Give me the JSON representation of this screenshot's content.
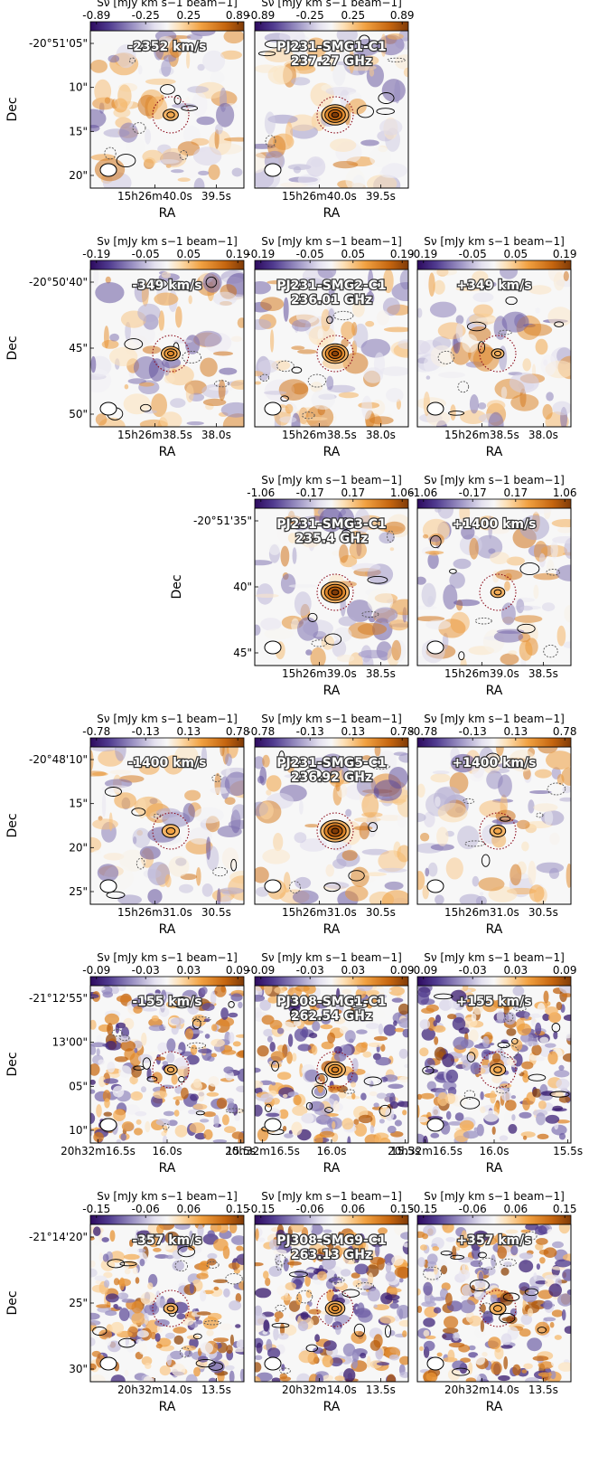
{
  "axis_labels": {
    "x": "RA",
    "y": "Dec"
  },
  "colors": {
    "negative": "#2d0a5e",
    "zero": "#f7f7f7",
    "positive": "#7f3b08",
    "circle": "#8b0a1a"
  },
  "chart_data": {
    "type": "heatmap",
    "colorscale": "PuOr_r",
    "contours": "solid black = positive levels, dashed grey = negative levels",
    "rows": [
      {
        "label": "PJ231-SMG1-C1",
        "colorbar": {
          "title": "Sν [mJy km s−1 beam−1]",
          "ticks": [
            "-0.89",
            "-0.25",
            "0.25",
            "0.89"
          ],
          "range": [
            -0.89,
            0.89
          ]
        },
        "y_ticks": [
          "-20°51'05\"",
          "10\"",
          "15\"",
          "20\""
        ],
        "x_ticks": [
          "15h26m40.0s",
          "39.5s"
        ],
        "panels": [
          {
            "slot": 0,
            "title": "-2352 km/s",
            "subtitle": "",
            "source": 0.8
          },
          {
            "slot": 1,
            "title": "PJ231-SMG1-C1",
            "subtitle": "237.27 GHz",
            "source": 3.0
          }
        ]
      },
      {
        "label": "PJ231-SMG2-C1",
        "colorbar": {
          "title": "Sν [mJy km s−1 beam−1]",
          "ticks": [
            "-0.19",
            "-0.05",
            "0.05",
            "0.19"
          ],
          "range": [
            -0.19,
            0.19
          ]
        },
        "y_ticks": [
          "-20°50'40\"",
          "45\"",
          "50\""
        ],
        "x_ticks": [
          "15h26m38.5s",
          "38.0s"
        ],
        "panels": [
          {
            "slot": 0,
            "title": "-349 km/s",
            "subtitle": "",
            "source": 1.5
          },
          {
            "slot": 1,
            "title": "PJ231-SMG2-C1",
            "subtitle": "236.01 GHz",
            "source": 2.8
          },
          {
            "slot": 2,
            "title": "+349 km/s",
            "subtitle": "",
            "source": 0.3
          }
        ]
      },
      {
        "label": "PJ231-SMG3-C1",
        "colorbar": {
          "title": "Sν [mJy km s−1 beam−1]",
          "ticks": [
            "-1.06",
            "-0.17",
            "0.17",
            "1.06"
          ],
          "range": [
            -1.06,
            1.06
          ]
        },
        "y_ticks": [
          "-20°51'35\"",
          "40\"",
          "45\""
        ],
        "x_ticks": [
          "15h26m39.0s",
          "38.5s"
        ],
        "panels": [
          {
            "slot": 1,
            "title": "PJ231-SMG3-C1",
            "subtitle": "235.4 GHz",
            "source": 3.2
          },
          {
            "slot": 2,
            "title": "+1400 km/s",
            "subtitle": "",
            "source": 0.6
          }
        ]
      },
      {
        "label": "PJ231-SMG5-C1",
        "colorbar": {
          "title": "Sν [mJy km s−1 beam−1]",
          "ticks": [
            "-0.78",
            "-0.13",
            "0.13",
            "0.78"
          ],
          "range": [
            -0.78,
            0.78
          ]
        },
        "y_ticks": [
          "-20°48'10\"",
          "15\"",
          "20\"",
          "25\""
        ],
        "x_ticks": [
          "15h26m31.0s",
          "30.5s"
        ],
        "panels": [
          {
            "slot": 0,
            "title": "-1400 km/s",
            "subtitle": "",
            "source": 1.2
          },
          {
            "slot": 1,
            "title": "PJ231-SMG5-C1",
            "subtitle": "236.92 GHz",
            "source": 3.4
          },
          {
            "slot": 2,
            "title": "+1400 km/s",
            "subtitle": "",
            "source": 0.9
          }
        ]
      },
      {
        "label": "PJ308-SMG1-C1",
        "colorbar": {
          "title": "Sν [mJy km s−1 beam−1]",
          "ticks": [
            "-0.09",
            "-0.03",
            "0.03",
            "0.09"
          ],
          "range": [
            -0.09,
            0.09
          ]
        },
        "y_ticks": [
          "-21°12'55\"",
          "13'00\"",
          "05\"",
          "10\""
        ],
        "x_ticks": [
          "20h32m16.5s",
          "16.0s",
          "15.5s"
        ],
        "panels": [
          {
            "slot": 0,
            "title": "-155 km/s",
            "subtitle": "",
            "source": 0.4
          },
          {
            "slot": 1,
            "title": "PJ308-SMG1-C1",
            "subtitle": "262.54 GHz",
            "source": 1.8
          },
          {
            "slot": 2,
            "title": "+155 km/s",
            "subtitle": "",
            "source": 0.9
          }
        ]
      },
      {
        "label": "PJ308-SMG9-C1",
        "colorbar": {
          "title": "Sν [mJy km s−1 beam−1]",
          "ticks": [
            "-0.15",
            "-0.06",
            "0.06",
            "0.15"
          ],
          "range": [
            -0.15,
            0.15
          ]
        },
        "y_ticks": [
          "-21°14'20\"",
          "25\"",
          "30\""
        ],
        "x_ticks": [
          "20h32m14.0s",
          "13.5s"
        ],
        "panels": [
          {
            "slot": 0,
            "title": "-357 km/s",
            "subtitle": "",
            "source": 0.6
          },
          {
            "slot": 1,
            "title": "PJ308-SMG9-C1",
            "subtitle": "263.13 GHz",
            "source": 1.6
          },
          {
            "slot": 2,
            "title": "+357 km/s",
            "subtitle": "",
            "source": 1.0
          }
        ]
      }
    ]
  }
}
